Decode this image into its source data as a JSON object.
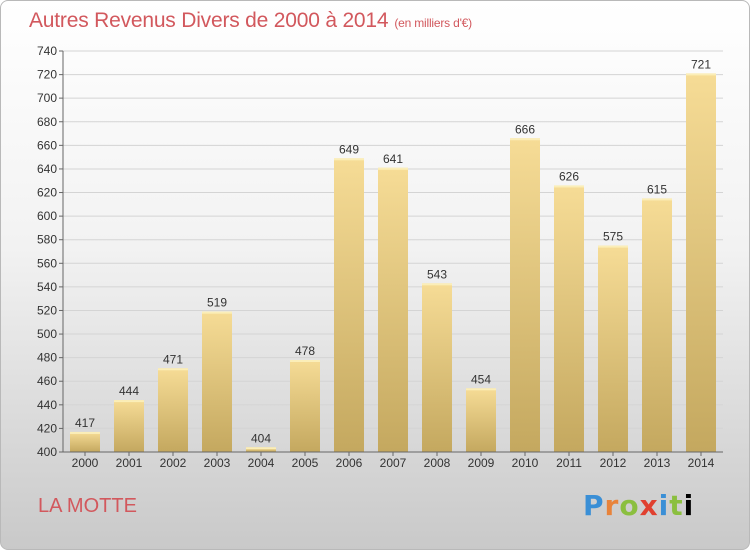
{
  "header": {
    "title": "Autres Revenus Divers de 2000 à 2014",
    "subtitle": "(en milliers d'€)"
  },
  "footer": {
    "city": "LA MOTTE",
    "logo": [
      "P",
      "r",
      "o",
      "x",
      "i",
      "t",
      "i"
    ]
  },
  "colors": {
    "title": "#d2585d",
    "bar_top": "#f6dc96",
    "bar_bottom": "#c4a85f"
  },
  "chart_data": {
    "type": "bar",
    "categories": [
      "2000",
      "2001",
      "2002",
      "2003",
      "2004",
      "2005",
      "2006",
      "2007",
      "2008",
      "2009",
      "2010",
      "2011",
      "2012",
      "2013",
      "2014"
    ],
    "values": [
      417,
      444,
      471,
      519,
      404,
      478,
      649,
      641,
      543,
      454,
      666,
      626,
      575,
      615,
      721
    ],
    "ylim": [
      400,
      740
    ],
    "ytick_step": 20,
    "grid": true,
    "data_labels": true
  }
}
